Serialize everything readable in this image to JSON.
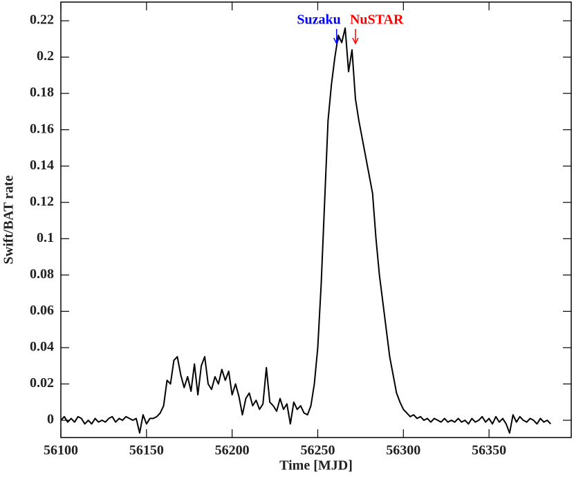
{
  "chart_data": {
    "type": "line",
    "xlabel": "Time [MJD]",
    "ylabel": "Swift/BAT rate",
    "xlim": [
      56100,
      56398
    ],
    "ylim": [
      -0.0095,
      0.2303
    ],
    "xticks": [
      56100,
      56150,
      56200,
      56250,
      56300,
      56350
    ],
    "yticks": [
      0,
      0.02,
      0.04,
      0.06,
      0.08,
      0.1,
      0.12,
      0.14,
      0.16,
      0.18,
      0.2,
      0.22
    ],
    "annotations": [
      {
        "text": "Suzaku",
        "x": 56261,
        "color": "#0000ff"
      },
      {
        "text": "NuSTAR",
        "x": 56272,
        "color": "#ff0000"
      }
    ],
    "x": [
      56100,
      56102,
      56104,
      56106,
      56108,
      56110,
      56112,
      56114,
      56116,
      56118,
      56120,
      56122,
      56124,
      56126,
      56128,
      56130,
      56132,
      56134,
      56136,
      56138,
      56140,
      56142,
      56144,
      56146,
      56148,
      56150,
      56152,
      56154,
      56156,
      56158,
      56160,
      56162,
      56164,
      56166,
      56168,
      56170,
      56172,
      56174,
      56176,
      56178,
      56180,
      56182,
      56184,
      56186,
      56188,
      56190,
      56192,
      56194,
      56196,
      56198,
      56200,
      56202,
      56204,
      56206,
      56208,
      56210,
      56212,
      56214,
      56216,
      56218,
      56220,
      56222,
      56224,
      56226,
      56228,
      56230,
      56232,
      56234,
      56236,
      56238,
      56240,
      56242,
      56244,
      56246,
      56248,
      56250,
      56252,
      56254,
      56256,
      56258,
      56260,
      56262,
      56264,
      56266,
      56268,
      56270,
      56272,
      56274,
      56276,
      56278,
      56280,
      56282,
      56284,
      56286,
      56288,
      56290,
      56292,
      56294,
      56296,
      56298,
      56300,
      56302,
      56304,
      56306,
      56308,
      56310,
      56312,
      56314,
      56316,
      56318,
      56320,
      56322,
      56324,
      56326,
      56328,
      56330,
      56332,
      56334,
      56336,
      56338,
      56340,
      56342,
      56344,
      56346,
      56348,
      56350,
      56352,
      56354,
      56356,
      56358,
      56360,
      56362,
      56364,
      56366,
      56368,
      56370,
      56372,
      56374,
      56376,
      56378,
      56380,
      56382,
      56384,
      56386
    ],
    "series": [
      {
        "color": "#000000",
        "values": [
          0.0,
          0.002,
          -0.001,
          0.001,
          -0.001,
          0.002,
          0.001,
          -0.002,
          0.0,
          -0.002,
          0.001,
          -0.001,
          0.0,
          -0.001,
          0.001,
          0.002,
          -0.001,
          0.001,
          0.0,
          0.002,
          0.001,
          0.0,
          0.001,
          -0.007,
          0.003,
          -0.002,
          0.001,
          0.001,
          0.002,
          0.004,
          0.008,
          0.022,
          0.02,
          0.033,
          0.035,
          0.025,
          0.018,
          0.024,
          0.016,
          0.031,
          0.014,
          0.03,
          0.035,
          0.02,
          0.017,
          0.024,
          0.02,
          0.028,
          0.022,
          0.027,
          0.014,
          0.02,
          0.013,
          0.003,
          0.012,
          0.015,
          0.008,
          0.011,
          0.006,
          0.009,
          0.029,
          0.01,
          0.008,
          0.005,
          0.012,
          0.006,
          0.009,
          -0.002,
          0.01,
          0.006,
          0.008,
          0.004,
          0.003,
          0.008,
          0.02,
          0.04,
          0.075,
          0.12,
          0.165,
          0.185,
          0.2,
          0.212,
          0.208,
          0.216,
          0.192,
          0.204,
          0.177,
          0.165,
          0.155,
          0.145,
          0.135,
          0.125,
          0.1,
          0.08,
          0.065,
          0.05,
          0.035,
          0.025,
          0.015,
          0.01,
          0.006,
          0.004,
          0.002,
          0.003,
          0.001,
          0.002,
          0.0,
          0.001,
          -0.001,
          0.001,
          0.0,
          -0.001,
          0.001,
          -0.001,
          0.0,
          -0.001,
          0.001,
          -0.001,
          0.0,
          -0.002,
          0.001,
          -0.001,
          0.0,
          0.002,
          -0.001,
          0.001,
          -0.002,
          0.002,
          -0.001,
          0.001,
          -0.002,
          -0.007,
          0.003,
          -0.001,
          0.002,
          0.0,
          -0.001,
          0.001,
          0.0,
          -0.002,
          0.001,
          -0.001,
          0.0,
          -0.002
        ]
      }
    ]
  }
}
